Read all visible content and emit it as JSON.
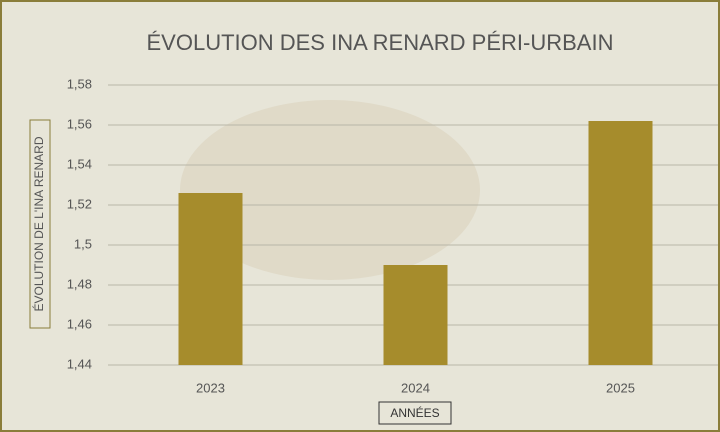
{
  "chart_data": {
    "type": "bar",
    "title": "ÉVOLUTION DES INA RENARD PÉRI-URBAIN",
    "x_label": "ANNÉES",
    "y_label": "ÉVOLUTION DE L'INA RENARD",
    "categories": [
      "2023",
      "2024",
      "2025"
    ],
    "values": [
      1.526,
      1.49,
      1.562
    ],
    "color": "#a68c2c",
    "ylim": [
      1.44,
      1.58
    ],
    "yticks": [
      {
        "value": 1.44,
        "label": "1,44"
      },
      {
        "value": 1.46,
        "label": "1,46"
      },
      {
        "value": 1.48,
        "label": "1,48"
      },
      {
        "value": 1.5,
        "label": "1,5"
      },
      {
        "value": 1.52,
        "label": "1,52"
      },
      {
        "value": 1.54,
        "label": "1,54"
      },
      {
        "value": 1.56,
        "label": "1,56"
      },
      {
        "value": 1.58,
        "label": "1,58"
      }
    ],
    "grid": true
  }
}
